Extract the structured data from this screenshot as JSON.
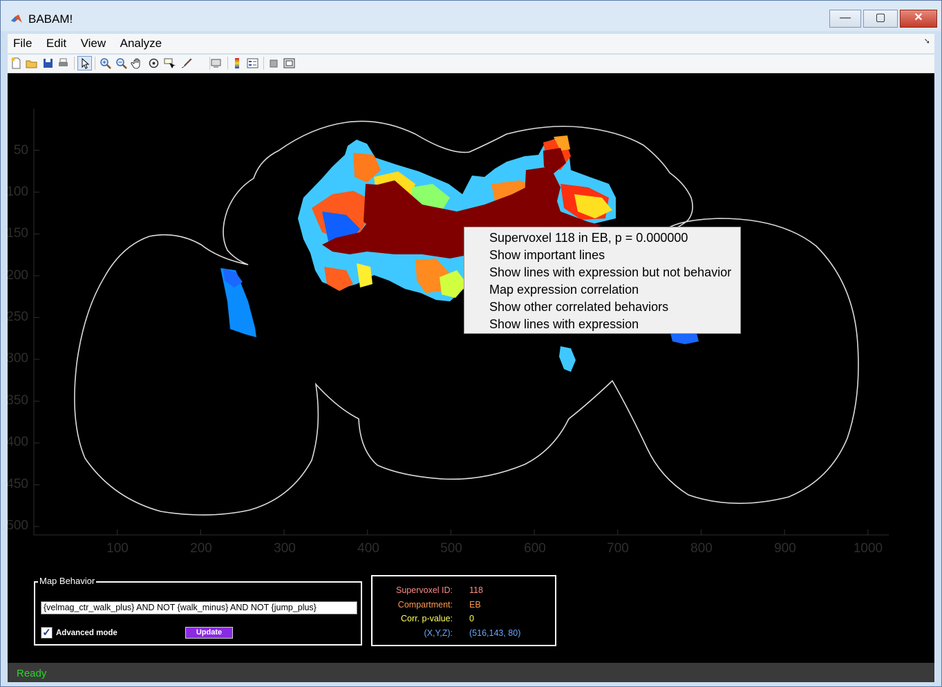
{
  "window": {
    "title": "BABAM!",
    "minimize": "—",
    "maximize": "▢",
    "close": "✕"
  },
  "menu": [
    "File",
    "Edit",
    "View",
    "Analyze"
  ],
  "toolbar_icons": [
    "new-figure-icon",
    "open-file-icon",
    "save-icon",
    "print-icon",
    "pointer-icon",
    "zoom-in-icon",
    "zoom-out-icon",
    "pan-icon",
    "rotate-icon",
    "data-cursor-icon",
    "brush-icon",
    "link-icon",
    "colorbar-icon",
    "legend-icon",
    "hide-plot-tools-icon",
    "show-plot-tools-icon"
  ],
  "axes": {
    "yticks": [
      "50",
      "100",
      "150",
      "200",
      "250",
      "300",
      "350",
      "400",
      "450",
      "500"
    ],
    "xticks": [
      "100",
      "200",
      "300",
      "400",
      "500",
      "600",
      "700",
      "800",
      "900",
      "1000"
    ],
    "xlim": [
      0,
      1025
    ],
    "ylim": [
      0,
      510
    ],
    "background": "#000000",
    "outline_color": "#ffffff"
  },
  "context_menu": [
    "Supervoxel 118 in EB, p = 0.000000",
    "Show important lines",
    "Show lines with expression but not behavior",
    "Map expression correlation",
    "Show other correlated behaviors",
    "Show lines with expression"
  ],
  "map_behavior": {
    "title": "Map Behavior",
    "query": "{velmag_ctr_walk_plus} AND NOT {walk_minus} AND NOT {jump_plus}",
    "advanced_mode_label": "Advanced mode",
    "advanced_mode_checked": true,
    "update_label": "Update"
  },
  "info": {
    "supervoxel_id_label": "Supervoxel ID:",
    "supervoxel_id": "118",
    "compartment_label": "Compartment:",
    "compartment": "EB",
    "corr_label": "Corr. p-value:",
    "corr": "0",
    "xyz_label": "(X,Y,Z):",
    "xyz": "(516,143, 80)",
    "colors": {
      "id": "#ff8a8a",
      "compartment": "#ff9a50",
      "corr": "#ffff60",
      "xyz": "#6aa8ff"
    }
  },
  "status": "Ready"
}
